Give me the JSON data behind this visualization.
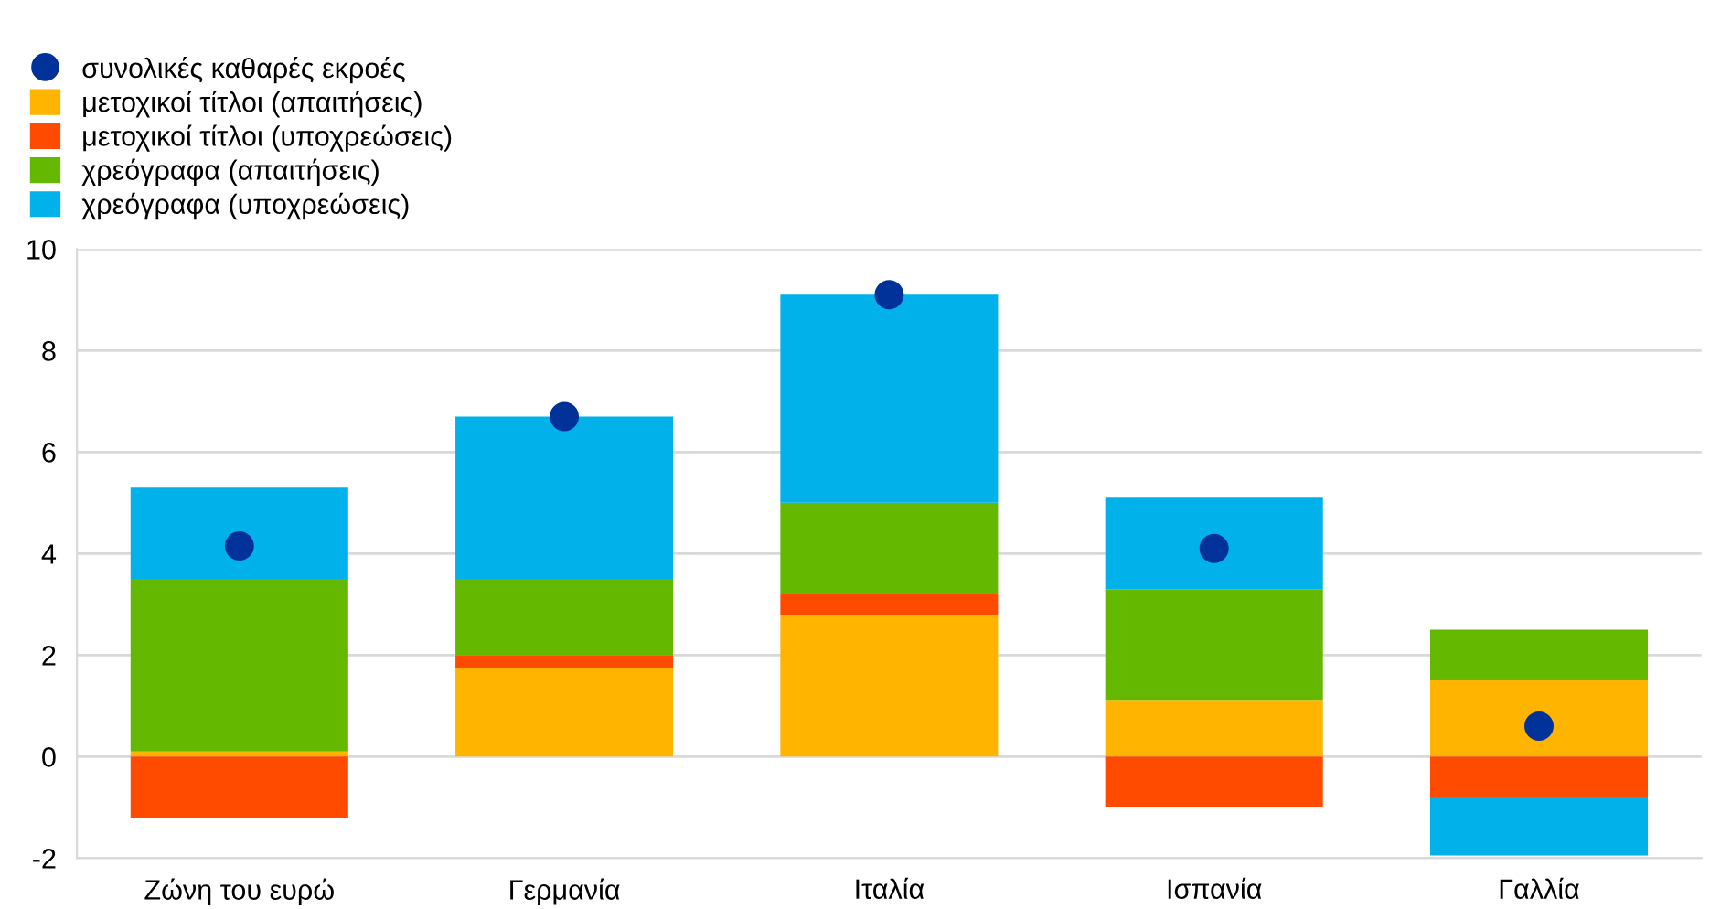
{
  "chart_data": {
    "type": "bar",
    "stacked": true,
    "categories": [
      "Ζώνη του ευρώ",
      "Γερμανία",
      "Ιταλία",
      "Ισπανία",
      "Γαλλία"
    ],
    "series": [
      {
        "name": "συνολικές καθαρές εκροές",
        "type": "scatter",
        "color": "#003299",
        "x": [
          "Ζώνη του ευρώ",
          "Γερμανία",
          "Ιταλία",
          "Ισπανία",
          "Γαλλία"
        ],
        "values": [
          4.15,
          6.7,
          9.1,
          4.1,
          0.6
        ]
      },
      {
        "name": "μετοχικοί τίτλοι (απαιτήσεις)",
        "color": "#ffb400",
        "values": [
          0.1,
          1.75,
          2.8,
          1.1,
          1.5
        ]
      },
      {
        "name": "μετοχικοί τίτλοι (υποχρεώσεις)",
        "color": "#ff4b00",
        "values": [
          -1.2,
          0.25,
          0.4,
          -1.0,
          -0.8
        ]
      },
      {
        "name": "χρεόγραφα (απαιτήσεις)",
        "color": "#65b800",
        "values": [
          3.4,
          1.5,
          1.8,
          2.2,
          1.0
        ]
      },
      {
        "name": "χρεόγραφα (υποχρεώσεις)",
        "color": "#00b1ea",
        "values": [
          1.8,
          3.2,
          4.1,
          1.8,
          -1.15
        ]
      }
    ],
    "ylim": [
      -2,
      10
    ],
    "yticks": [
      -2,
      0,
      2,
      4,
      6,
      8,
      10
    ],
    "grid": "y",
    "legend": "top left",
    "marker": "circle"
  }
}
